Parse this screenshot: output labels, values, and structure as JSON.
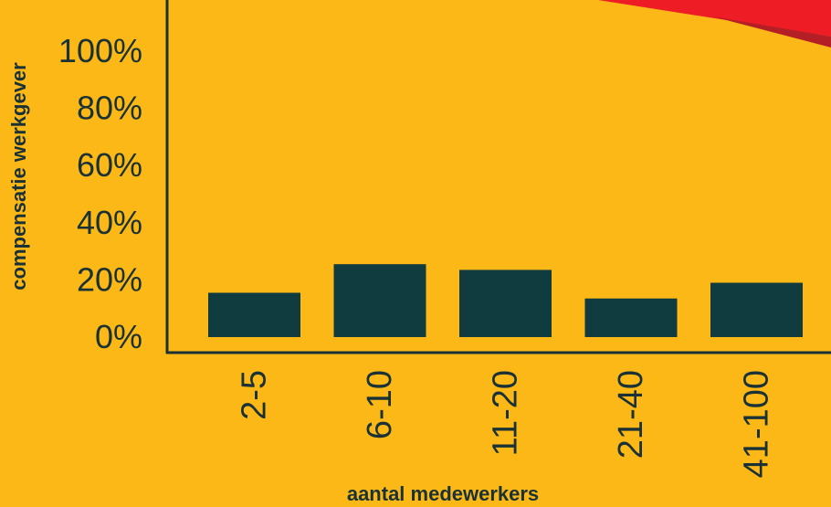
{
  "colors": {
    "background": "#fbb817",
    "bar": "#103b3f",
    "axis": "#1a3236",
    "accent_red": "#ee1c25",
    "accent_dark_red": "#b31f24"
  },
  "chart_data": {
    "type": "bar",
    "categories": [
      "2-5",
      "6-10",
      "11-20",
      "21-40",
      "41-100"
    ],
    "values": [
      15.5,
      25.5,
      23.5,
      13.5,
      19
    ],
    "xlabel": "aantal medewerkers",
    "ylabel": "compensatie werkgever",
    "ylim": [
      0,
      100
    ],
    "yticks": [
      "0%",
      "20%",
      "40%",
      "60%",
      "80%",
      "100%"
    ],
    "ytick_values": [
      0,
      20,
      40,
      60,
      80,
      100
    ],
    "grid": false,
    "legend": "none"
  }
}
